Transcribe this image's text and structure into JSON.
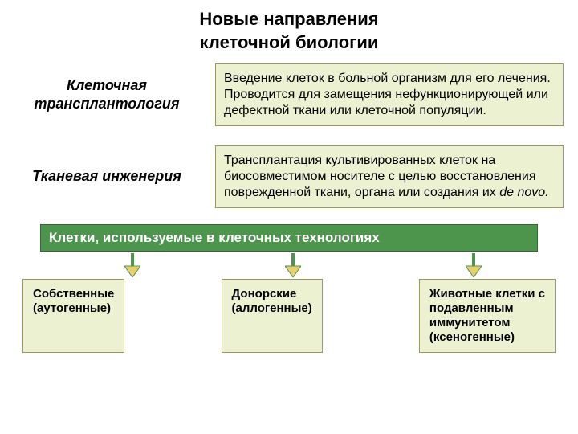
{
  "title_line1": "Новые направления",
  "title_line2": "клеточной биологии",
  "title_fontsize": 22,
  "title_color": "#000000",
  "row1": {
    "label_line1": "Клеточная",
    "label_line2": "трансплантология",
    "label_fontsize": 18,
    "label_color": "#000000",
    "label_width": 230,
    "desc_text": "Введение клеток в больной организм для его лечения. Проводится для замещения нефункционирующей или дефектной ткани или клеточной популяции.",
    "desc_fontsize": 16,
    "desc_bg": "#ecf2d1",
    "desc_border": "#999966"
  },
  "row2": {
    "label": "Тканевая инженерия",
    "label_fontsize": 18,
    "label_color": "#000000",
    "label_width": 230,
    "desc_prefix": "Трансплантация культивированных клеток на биосовместимом носителе с целью восстановления поврежденной ткани, органа или создания их ",
    "desc_italic": "de novo.",
    "desc_fontsize": 16,
    "desc_bg": "#ecf2d1",
    "desc_border": "#999966"
  },
  "green_bar": {
    "text": "Клетки, используемые в клеточных технологиях",
    "fontsize": 17,
    "bg": "#4d944d",
    "border": "#336633",
    "text_color": "#ffffff"
  },
  "arrows": {
    "shaft_color": "#4d944d",
    "head_color": "#e8d070",
    "positions_x": [
      115,
      315,
      540
    ]
  },
  "bottom_boxes": {
    "bg": "#ecf2d1",
    "border": "#999966",
    "fontsize": 15,
    "box1_line1": "Собственные",
    "box1_line2": "(аутогенные)",
    "box2_line1": "Донорские",
    "box2_line2": "(аллогенные)",
    "box3_line1": "Животные клетки с",
    "box3_line2": " подавленным",
    "box3_line3": "иммунитетом",
    "box3_line4": "(ксеногенные)"
  },
  "background_color": "#ffffff"
}
